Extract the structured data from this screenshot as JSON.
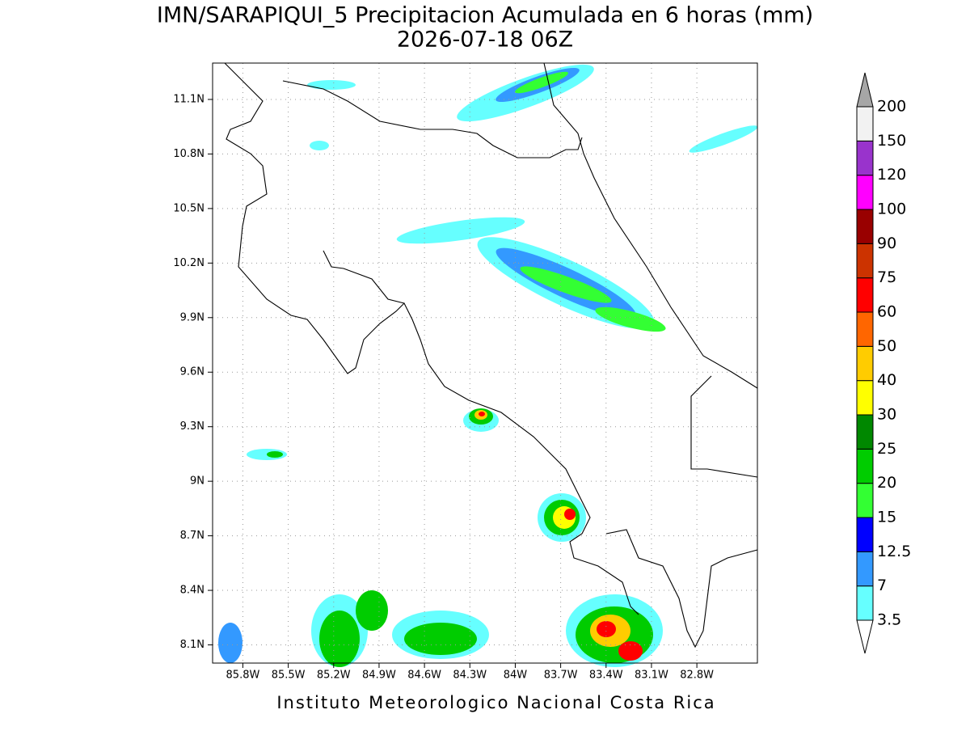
{
  "title": "IMN/SARAPIQUI_5 Precipitacion Acumulada en 6 horas (mm)",
  "subtitle": "2026-07-18 06Z",
  "map": {
    "xlim": [
      -86.0,
      -82.4
    ],
    "ylim": [
      8.0,
      11.3
    ],
    "grid": true,
    "xticks": [
      {
        "value": -85.8,
        "label": "85.8W"
      },
      {
        "value": -85.5,
        "label": "85.5W"
      },
      {
        "value": -85.2,
        "label": "85.2W"
      },
      {
        "value": -84.9,
        "label": "84.9W"
      },
      {
        "value": -84.6,
        "label": "84.6W"
      },
      {
        "value": -84.3,
        "label": "84.3W"
      },
      {
        "value": -84.0,
        "label": "84W"
      },
      {
        "value": -83.7,
        "label": "83.7W"
      },
      {
        "value": -83.4,
        "label": "83.4W"
      },
      {
        "value": -83.1,
        "label": "83.1W"
      },
      {
        "value": -82.8,
        "label": "82.8W"
      }
    ],
    "yticks": [
      {
        "value": 8.1,
        "label": "8.1N"
      },
      {
        "value": 8.4,
        "label": "8.4N"
      },
      {
        "value": 8.7,
        "label": "8.7N"
      },
      {
        "value": 9.0,
        "label": "9N"
      },
      {
        "value": 9.3,
        "label": "9.3N"
      },
      {
        "value": 9.6,
        "label": "9.6N"
      },
      {
        "value": 9.9,
        "label": "9.9N"
      },
      {
        "value": 10.2,
        "label": "10.2N"
      },
      {
        "value": 10.5,
        "label": "10.5N"
      },
      {
        "value": 10.8,
        "label": "10.8N"
      },
      {
        "value": 11.1,
        "label": "11.1N"
      }
    ]
  },
  "colorbar": {
    "levels": [
      3.5,
      7,
      12.5,
      15,
      20,
      25,
      30,
      40,
      50,
      60,
      75,
      90,
      100,
      120,
      150,
      200
    ],
    "colors": [
      "#ffffff",
      "#66ffff",
      "#3399ff",
      "#0000ff",
      "#33ff33",
      "#00cc00",
      "#008800",
      "#ffff00",
      "#ffcc00",
      "#ff6600",
      "#ff0000",
      "#cc3300",
      "#990000",
      "#ff00ff",
      "#9933cc",
      "#f2f2f2",
      "#a6a6a6"
    ]
  },
  "footer": "Instituto Meteorologico Nacional Costa Rica"
}
